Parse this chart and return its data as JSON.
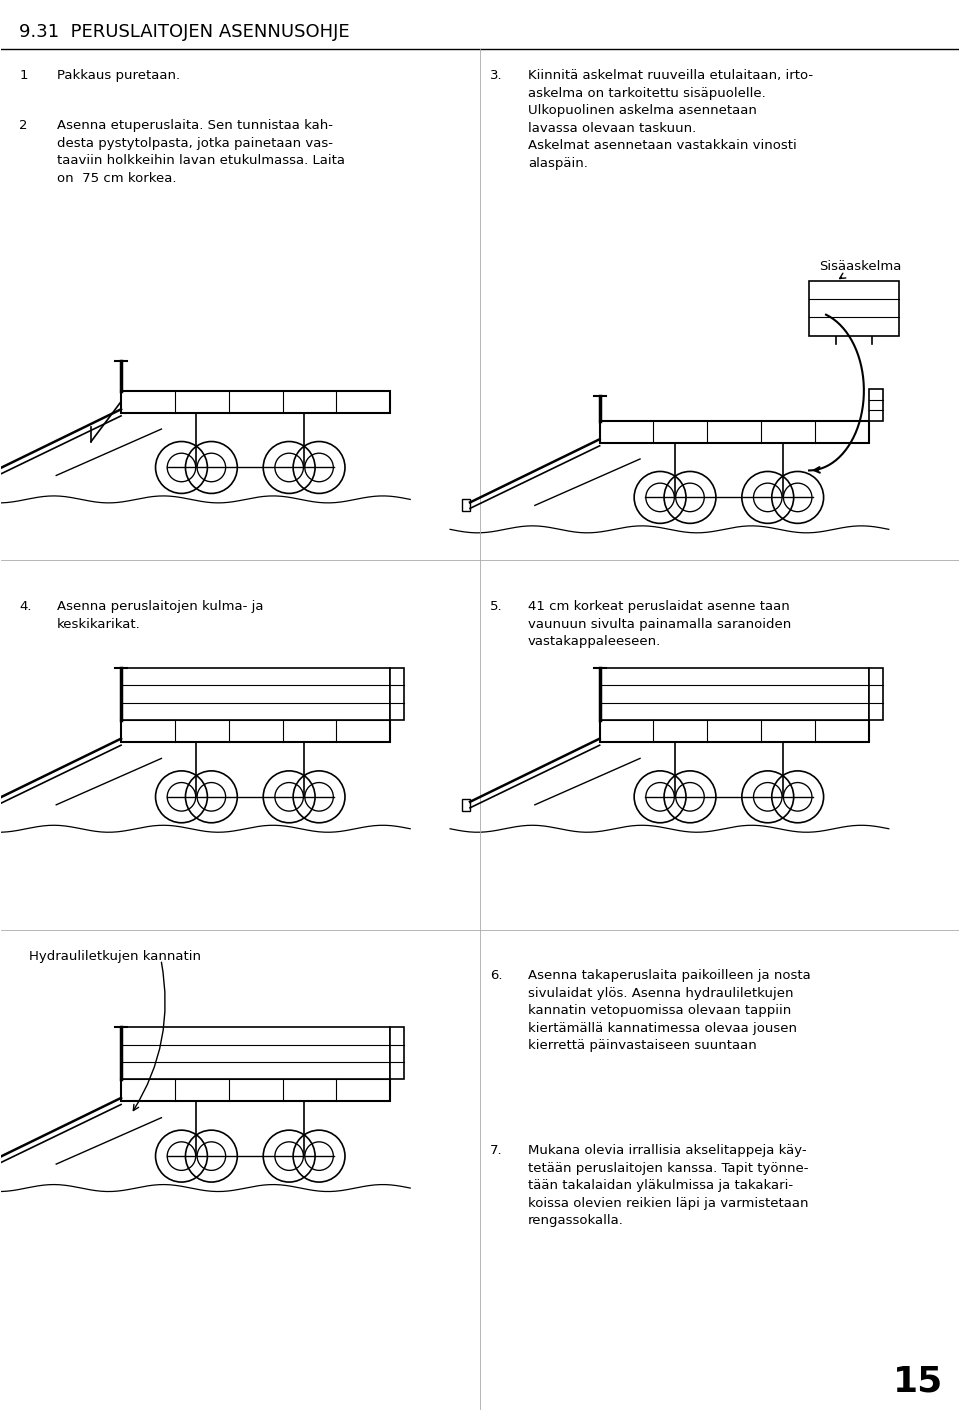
{
  "title": "9.31  PERUSLAITOJEN ASENNUSOHJE",
  "background_color": "#ffffff",
  "text_color": "#000000",
  "page_number": "15",
  "title_fontsize": 13,
  "body_fontsize": 9.5,
  "number_fontsize": 9.5,
  "sections": [
    {
      "number": "1",
      "col": 0,
      "row": 0,
      "text": "Pakkaus puretaan."
    },
    {
      "number": "2",
      "col": 0,
      "row": 1,
      "text": "Asenna etuperuslaita. Sen tunnistaa kah-\ndesta pystytolpasta, jotka painetaan vas-\ntaaviin holkkeihin lavan etukulmassa. Laita\non  75 cm korkea."
    },
    {
      "number": "3",
      "col": 1,
      "row": 0,
      "text": "Kiinnitä askelmat ruuveilla etulaitaan, irto-\naskelma on tarkoitettu sisäpuolelle.\nUlkopuolinen askelma asennetaan\nlavassa olevaan taskuun.\nAskelmat asennetaan vastakkain vinosti\nalaspäin."
    },
    {
      "number": "4",
      "col": 0,
      "row": 2,
      "text": "Asenna peruslaitojen kulma- ja\nkeskikarikat."
    },
    {
      "number": "5",
      "col": 1,
      "row": 2,
      "text": "41 cm korkeat peruslaidat asenne taan\nvaunuun sivulta painamalla saranoiden\nvastakappaleeseen."
    },
    {
      "number": "6",
      "col": 1,
      "row": 4,
      "text": "Asenna takaperuslaita paikoilleen ja nosta\nsivulaidat ylös. Asenna hydrauliletkujen\nkannatin vetopuomissa olevaan tappiin\nkiertämällä kannatimessa olevaa jousen\nkierrettä päinvastaiseen suuntaan"
    },
    {
      "number": "7",
      "col": 1,
      "row": 5,
      "text": "Mukana olevia irrallisia akselitappeja käy-\ntetään peruslaitojen kanssa. Tapit työnne-\ntään takalaidan yläkulmissa ja takakari-\nkoissa olevien reikien läpi ja varmistetaan\nrengassokalla."
    }
  ]
}
